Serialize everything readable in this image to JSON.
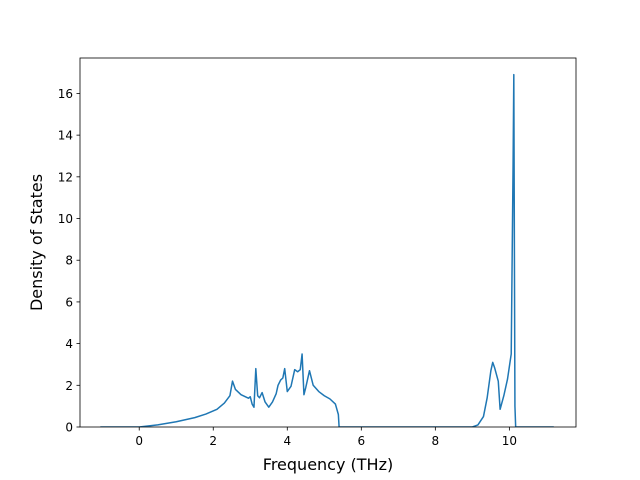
{
  "chart_data": {
    "type": "line",
    "title": "",
    "xlabel": "Frequency (THz)",
    "ylabel": "Density of States",
    "xlim": [
      -1.6,
      11.8
    ],
    "ylim": [
      0,
      17.7
    ],
    "xticks": [
      0,
      2,
      4,
      6,
      8,
      10
    ],
    "yticks": [
      0,
      2,
      4,
      6,
      8,
      10,
      12,
      14,
      16
    ],
    "grid": false,
    "legend": "none",
    "colors": {
      "line": "#1f77b4",
      "axes": "#000000",
      "background": "#ffffff"
    },
    "series": [
      {
        "name": "",
        "x": [
          -1.05,
          -0.5,
          0.0,
          0.5,
          1.0,
          1.5,
          1.8,
          2.1,
          2.3,
          2.45,
          2.52,
          2.6,
          2.75,
          2.95,
          3.0,
          3.05,
          3.1,
          3.15,
          3.2,
          3.25,
          3.32,
          3.4,
          3.5,
          3.6,
          3.7,
          3.75,
          3.82,
          3.88,
          3.93,
          4.0,
          4.1,
          4.2,
          4.28,
          4.35,
          4.4,
          4.45,
          4.5,
          4.55,
          4.6,
          4.7,
          4.85,
          5.0,
          5.15,
          5.3,
          5.38,
          5.4,
          5.45,
          6.0,
          7.0,
          8.0,
          9.0,
          9.15,
          9.3,
          9.4,
          9.5,
          9.55,
          9.6,
          9.7,
          9.75,
          9.85,
          9.95,
          10.05,
          10.08,
          10.1,
          10.12,
          10.15,
          10.17,
          10.5,
          11.2
        ],
        "y": [
          0,
          0,
          0,
          0.1,
          0.25,
          0.45,
          0.62,
          0.85,
          1.15,
          1.5,
          2.2,
          1.8,
          1.55,
          1.38,
          1.45,
          1.1,
          0.95,
          2.8,
          1.5,
          1.4,
          1.65,
          1.2,
          0.95,
          1.2,
          1.6,
          2.0,
          2.25,
          2.35,
          2.8,
          1.7,
          1.95,
          2.75,
          2.65,
          2.75,
          3.5,
          1.55,
          1.9,
          2.3,
          2.7,
          2.0,
          1.7,
          1.5,
          1.35,
          1.1,
          0.6,
          0,
          0,
          0,
          0,
          0,
          0,
          0.1,
          0.5,
          1.4,
          2.7,
          3.1,
          2.85,
          2.2,
          0.85,
          1.5,
          2.3,
          3.5,
          9.0,
          12.5,
          16.9,
          1.0,
          0,
          0,
          0
        ]
      }
    ]
  }
}
